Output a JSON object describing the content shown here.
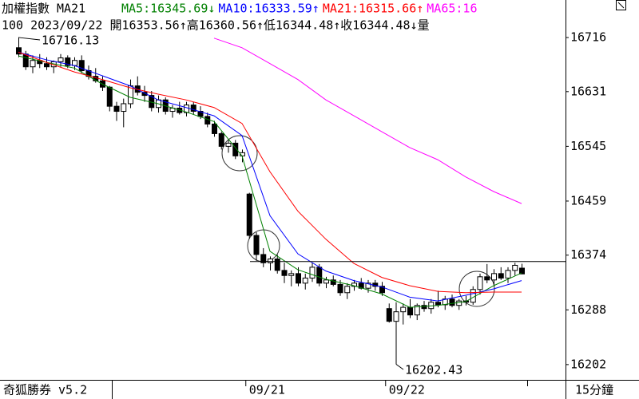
{
  "chart_data": {
    "type": "candlestick",
    "header": {
      "title": "加權指數 MA21",
      "ma_labels": [
        {
          "text": "MA5:16345.69↓",
          "color": "#008000"
        },
        {
          "text": "MA10:16333.59↑",
          "color": "#0000ff"
        },
        {
          "text": "MA21:16315.66↑",
          "color": "#ff0000"
        },
        {
          "text": "MA65:16",
          "color": "#ff00ff"
        }
      ],
      "info": "100 2023/09/22 開16353.56↑高16360.56↑低16344.48↑收16344.48↓量"
    },
    "open": [
      16700,
      16690,
      16670,
      16680,
      16675,
      16670,
      16678,
      16684,
      16672,
      16680,
      16664,
      16655,
      16648,
      16638,
      16608,
      16600,
      16612,
      16640,
      16630,
      16625,
      16606,
      16618,
      16600,
      16605,
      16598,
      16610,
      16600,
      16592,
      16580,
      16565,
      16545,
      16550,
      16530,
      16470,
      16405,
      16375,
      16362,
      16368,
      16350,
      16342,
      16345,
      16330,
      16338,
      16355,
      16330,
      16335,
      16328,
      16315,
      16325,
      16330,
      16322,
      16330,
      16325,
      16290,
      16270,
      16285,
      16292,
      16280,
      16295,
      16290,
      16300,
      16296,
      16305,
      16295,
      16302,
      16300,
      16320,
      16340,
      16335,
      16345,
      16338,
      16350,
      16353.56
    ],
    "high": [
      16716.13,
      16695,
      16688,
      16690,
      16685,
      16680,
      16690,
      16688,
      16685,
      16688,
      16672,
      16668,
      16655,
      16640,
      16615,
      16620,
      16650,
      16655,
      16640,
      16632,
      16625,
      16622,
      16610,
      16615,
      16615,
      16615,
      16608,
      16598,
      16585,
      16568,
      16555,
      16555,
      16540,
      16472,
      16410,
      16385,
      16372,
      16375,
      16362,
      16350,
      16355,
      16345,
      16362,
      16360,
      16340,
      16342,
      16335,
      16330,
      16335,
      16338,
      16335,
      16335,
      16332,
      16298,
      16300,
      16298,
      16305,
      16298,
      16302,
      16305,
      16318,
      16310,
      16312,
      16305,
      16310,
      16325,
      16345,
      16360,
      16352,
      16355,
      16355,
      16362,
      16360.56
    ],
    "low": [
      16685,
      16665,
      16660,
      16668,
      16665,
      16660,
      16670,
      16668,
      16665,
      16660,
      16650,
      16645,
      16632,
      16600,
      16585,
      16575,
      16605,
      16625,
      16615,
      16600,
      16598,
      16595,
      16590,
      16595,
      16592,
      16595,
      16588,
      16575,
      16560,
      16540,
      16535,
      16525,
      16520,
      16400,
      16365,
      16355,
      16350,
      16345,
      16330,
      16325,
      16325,
      16320,
      16332,
      16325,
      16322,
      16325,
      16310,
      16305,
      16318,
      16320,
      16315,
      16318,
      16310,
      16268,
      16202.43,
      16265,
      16275,
      16272,
      16285,
      16282,
      16292,
      16288,
      16292,
      16288,
      16295,
      16296,
      16312,
      16330,
      16325,
      16335,
      16330,
      16342,
      16344.48
    ],
    "close": [
      16690,
      16670,
      16680,
      16675,
      16670,
      16678,
      16684,
      16672,
      16680,
      16664,
      16655,
      16648,
      16638,
      16608,
      16600,
      16612,
      16640,
      16630,
      16625,
      16606,
      16618,
      16600,
      16605,
      16598,
      16610,
      16600,
      16592,
      16580,
      16565,
      16545,
      16550,
      16530,
      16535,
      16405,
      16375,
      16362,
      16368,
      16350,
      16342,
      16345,
      16330,
      16338,
      16355,
      16330,
      16335,
      16328,
      16315,
      16325,
      16330,
      16322,
      16330,
      16325,
      16315,
      16270,
      16285,
      16292,
      16280,
      16295,
      16290,
      16300,
      16296,
      16305,
      16295,
      16302,
      16300,
      16320,
      16340,
      16335,
      16345,
      16338,
      16350,
      16358,
      16344.48
    ],
    "ma_x": [
      0,
      4,
      8,
      12,
      16,
      20,
      24,
      28,
      32,
      36,
      40,
      44,
      48,
      52,
      56,
      60,
      64,
      68,
      72
    ],
    "series": [
      {
        "color": "#008000",
        "values": [
          16687,
          16677,
          16668,
          16643,
          16622,
          16612,
          16599,
          16584,
          16530,
          16380,
          16351,
          16336,
          16326,
          16313,
          16292,
          16295,
          16301,
          16326,
          16346
        ]
      },
      {
        "color": "#0000ff",
        "values": [
          16693,
          16681,
          16672,
          16656,
          16640,
          16618,
          16606,
          16593,
          16562,
          16436,
          16376,
          16349,
          16334,
          16324,
          16308,
          16302,
          16311,
          16321,
          16334
        ]
      },
      {
        "color": "#ff0000",
        "values": [
          16693,
          16677,
          16662,
          16650,
          16637,
          16627,
          16618,
          16606,
          16581,
          16505,
          16443,
          16399,
          16361,
          16339,
          16326,
          16317,
          16315,
          16316,
          16316
        ]
      },
      {
        "color": "#ff00ff",
        "values": [
          null,
          null,
          null,
          null,
          null,
          null,
          null,
          16715,
          16700,
          16675,
          16650,
          16618,
          16593,
          16568,
          16543,
          16524,
          16497,
          16474,
          16455
        ]
      }
    ],
    "price_line": 16364,
    "ylim": [
      16178,
      16775
    ],
    "yticks": [
      16716,
      16631,
      16545,
      16459,
      16374,
      16288,
      16202
    ],
    "xlabels": [
      {
        "index": 33,
        "label": "09/21"
      },
      {
        "index": 53,
        "label": "09/22"
      }
    ],
    "footer": {
      "app": "奇狐勝券 v5.2",
      "period": "15分鐘"
    }
  }
}
